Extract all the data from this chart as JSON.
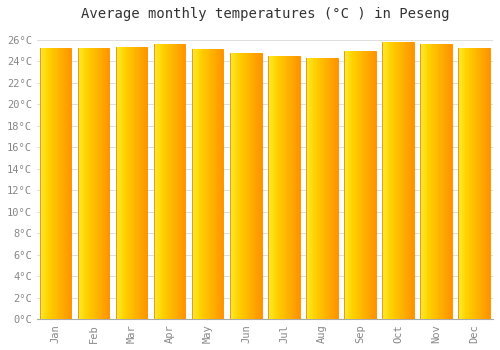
{
  "title": "Average monthly temperatures (°C ) in Peseng",
  "months": [
    "Jan",
    "Feb",
    "Mar",
    "Apr",
    "May",
    "Jun",
    "Jul",
    "Aug",
    "Sep",
    "Oct",
    "Nov",
    "Dec"
  ],
  "values": [
    25.2,
    25.2,
    25.3,
    25.6,
    25.1,
    24.8,
    24.5,
    24.3,
    25.0,
    25.8,
    25.6,
    25.2
  ],
  "bar_color_light": "#FFD040",
  "bar_color_main": "#FFA800",
  "bar_color_dark": "#F08000",
  "ylim": [
    0,
    27
  ],
  "yticks": [
    0,
    2,
    4,
    6,
    8,
    10,
    12,
    14,
    16,
    18,
    20,
    22,
    24,
    26
  ],
  "ytick_labels": [
    "0°C",
    "2°C",
    "4°C",
    "6°C",
    "8°C",
    "10°C",
    "12°C",
    "14°C",
    "16°C",
    "18°C",
    "20°C",
    "22°C",
    "24°C",
    "26°C"
  ],
  "background_color": "#FFFFFF",
  "grid_color": "#DDDDDD",
  "title_fontsize": 10,
  "tick_fontsize": 7.5,
  "figsize": [
    5.0,
    3.5
  ],
  "dpi": 100
}
